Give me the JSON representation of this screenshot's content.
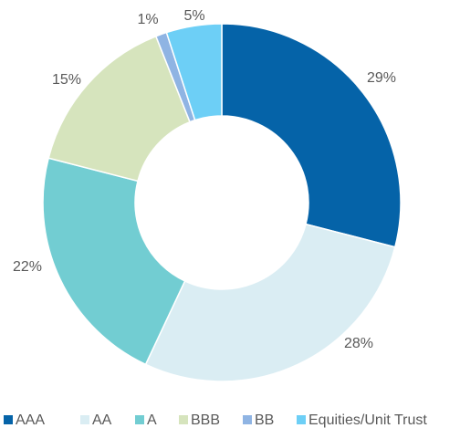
{
  "chart_data": {
    "type": "donut",
    "categories": [
      "AAA",
      "AA",
      "A",
      "BBB",
      "BB",
      "Equities/Unit Trust"
    ],
    "values": [
      29,
      28,
      22,
      15,
      1,
      5
    ],
    "value_labels": [
      "29%",
      "28%",
      "22%",
      "15%",
      "1%",
      "5%"
    ],
    "colors": [
      "#0563a8",
      "#daedf3",
      "#72cdd2",
      "#d6e4bd",
      "#8fb4e3",
      "#6dcff6"
    ],
    "legend": "bottom"
  }
}
